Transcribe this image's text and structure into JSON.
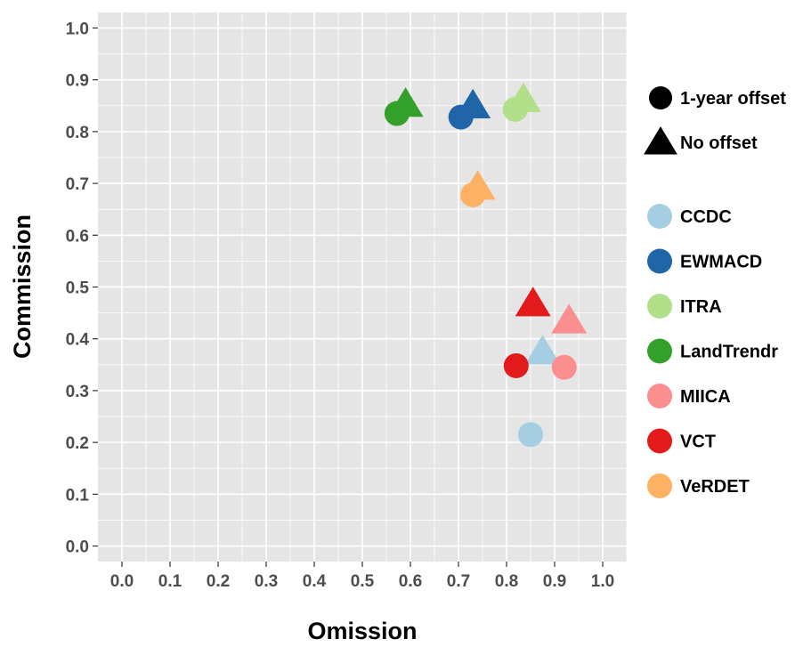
{
  "chart_data": {
    "type": "scatter",
    "xlabel": "Omission",
    "ylabel": "Commission",
    "xlim": [
      -0.05,
      1.05
    ],
    "ylim": [
      -0.03,
      1.03
    ],
    "x_ticks": [
      "0.0",
      "0.1",
      "0.2",
      "0.3",
      "0.4",
      "0.5",
      "0.6",
      "0.7",
      "0.8",
      "0.9",
      "1.0"
    ],
    "y_ticks": [
      "0.0",
      "0.1",
      "0.2",
      "0.3",
      "0.4",
      "0.5",
      "0.6",
      "0.7",
      "0.8",
      "0.9",
      "1.0"
    ],
    "grid": true,
    "legend_position": "right",
    "shape_legend": [
      {
        "label": "1-year offset",
        "shape": "circle"
      },
      {
        "label": "No offset",
        "shape": "triangle"
      }
    ],
    "series": [
      {
        "name": "CCDC",
        "color": "#a6cee3",
        "points": [
          {
            "x": 0.85,
            "y": 0.215,
            "shape": "circle"
          },
          {
            "x": 0.875,
            "y": 0.375,
            "shape": "triangle"
          }
        ]
      },
      {
        "name": "EWMACD",
        "color": "#1f65a8",
        "points": [
          {
            "x": 0.705,
            "y": 0.828,
            "shape": "circle"
          },
          {
            "x": 0.73,
            "y": 0.85,
            "shape": "triangle"
          }
        ]
      },
      {
        "name": "ITRA",
        "color": "#b2df8a",
        "points": [
          {
            "x": 0.818,
            "y": 0.843,
            "shape": "circle"
          },
          {
            "x": 0.835,
            "y": 0.862,
            "shape": "triangle"
          }
        ]
      },
      {
        "name": "LandTrendr",
        "color": "#33a02c",
        "points": [
          {
            "x": 0.572,
            "y": 0.835,
            "shape": "circle"
          },
          {
            "x": 0.59,
            "y": 0.853,
            "shape": "triangle"
          }
        ]
      },
      {
        "name": "MIICA",
        "color": "#fb8f8f",
        "points": [
          {
            "x": 0.92,
            "y": 0.345,
            "shape": "circle"
          },
          {
            "x": 0.93,
            "y": 0.435,
            "shape": "triangle"
          }
        ]
      },
      {
        "name": "VCT",
        "color": "#e31a1c",
        "points": [
          {
            "x": 0.82,
            "y": 0.348,
            "shape": "circle"
          },
          {
            "x": 0.855,
            "y": 0.468,
            "shape": "triangle"
          }
        ]
      },
      {
        "name": "VeRDET",
        "color": "#fdb163",
        "points": [
          {
            "x": 0.73,
            "y": 0.678,
            "shape": "circle"
          },
          {
            "x": 0.74,
            "y": 0.693,
            "shape": "triangle"
          }
        ]
      }
    ]
  }
}
